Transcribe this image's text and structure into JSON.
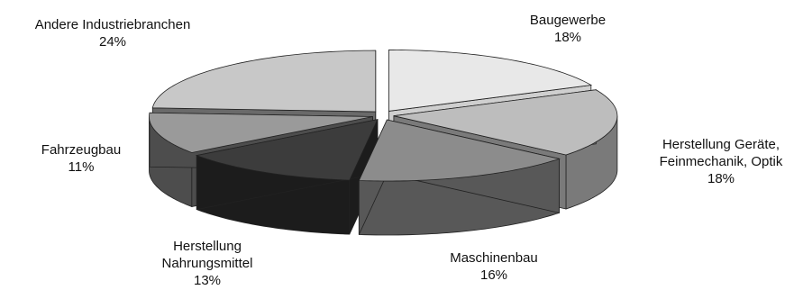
{
  "chart_data": {
    "type": "pie",
    "style": "3d-exploded",
    "title": "",
    "slices": [
      {
        "label_lines": [
          "Baugewerbe"
        ],
        "value_label": "18%",
        "value": 18,
        "top_color": "#e8e8e8",
        "side_color": "#cfcfcf"
      },
      {
        "label_lines": [
          "Herstellung Geräte,",
          "Feinmechanik, Optik"
        ],
        "value_label": "18%",
        "value": 18,
        "top_color": "#bdbdbd",
        "side_color": "#7a7a7a"
      },
      {
        "label_lines": [
          "Maschinenbau"
        ],
        "value_label": "16%",
        "value": 16,
        "top_color": "#8c8c8c",
        "side_color": "#585858"
      },
      {
        "label_lines": [
          "Herstellung",
          "Nahrungsmittel"
        ],
        "value_label": "13%",
        "value": 13,
        "top_color": "#3c3c3c",
        "side_color": "#1c1c1c"
      },
      {
        "label_lines": [
          "Fahrzeugbau"
        ],
        "value_label": "11%",
        "value": 11,
        "top_color": "#9a9a9a",
        "side_color": "#4d4d4d"
      },
      {
        "label_lines": [
          "Andere Industriebranchen"
        ],
        "value_label": "24%",
        "value": 24,
        "top_color": "#c8c8c8",
        "side_color": "#6a6a6a"
      }
    ]
  }
}
